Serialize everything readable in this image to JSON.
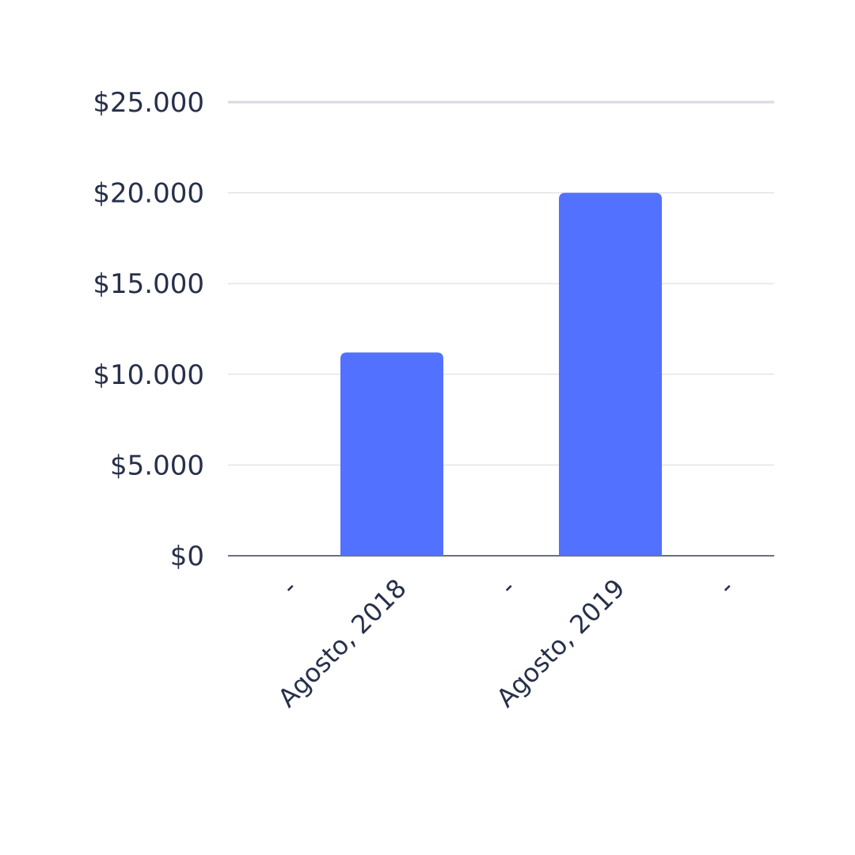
{
  "chart_data": {
    "type": "bar",
    "title": "",
    "xlabel": "",
    "ylabel": "",
    "categories": [
      "-",
      "Agosto, 2018",
      "-",
      "Agosto, 2019",
      "-"
    ],
    "values": [
      0,
      11200,
      0,
      20000,
      0
    ],
    "ylim": [
      0,
      25000
    ],
    "yticks": [
      0,
      5000,
      10000,
      15000,
      20000,
      25000
    ],
    "ytick_labels": [
      "$0",
      "$5.000",
      "$10.000",
      "$15.000",
      "$20.000",
      "$25.000"
    ],
    "grid": true,
    "legend": "none",
    "colors": {
      "bar": "#5271ff",
      "grid": "#d9d9e0",
      "axis": "#6b7080",
      "text": "#27304a"
    }
  }
}
